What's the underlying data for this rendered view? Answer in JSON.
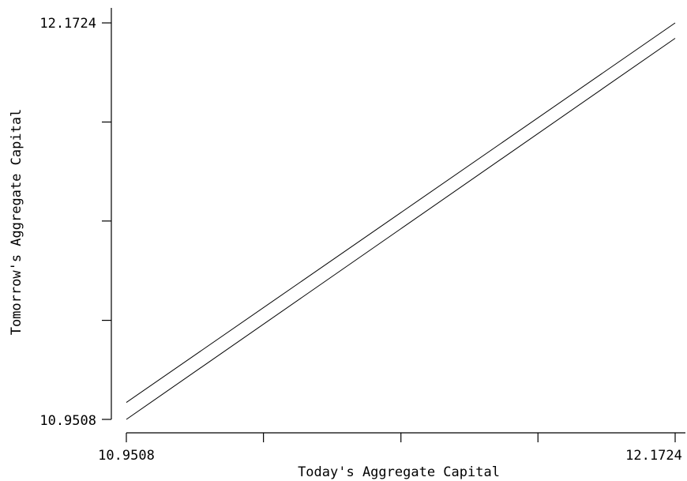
{
  "chart_data": {
    "type": "line",
    "title": "",
    "xlabel": "Today's Aggregate Capital",
    "ylabel": "Tomorrow's Aggregate Capital",
    "xlim": [
      10.9508,
      12.1724
    ],
    "ylim": [
      10.9508,
      12.1724
    ],
    "x_tick_labels": [
      "10.9508",
      "12.1724"
    ],
    "y_tick_labels": [
      "10.9508",
      "12.1724"
    ],
    "x_minor_ticks": [
      11.256,
      11.562,
      11.867
    ],
    "y_minor_ticks": [
      11.256,
      11.562,
      11.867
    ],
    "grid": false,
    "series": [
      {
        "x": [
          10.9508,
          12.1724
        ],
        "y": [
          11.003,
          12.1724
        ],
        "color": "#000000"
      },
      {
        "x": [
          10.9508,
          12.1724
        ],
        "y": [
          10.9508,
          12.125
        ],
        "color": "#000000"
      }
    ]
  }
}
